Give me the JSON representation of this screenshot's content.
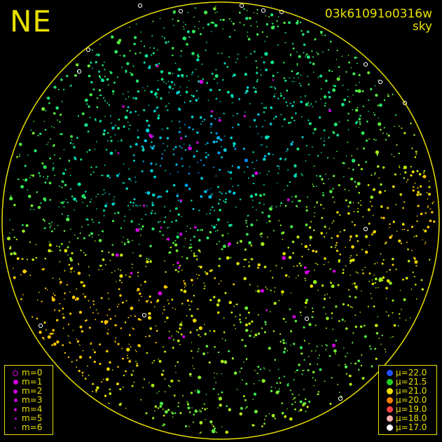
{
  "header": {
    "direction_label": "NE",
    "frame_id": "03k61091o0316w",
    "frame_type": "sky"
  },
  "colors": {
    "frame_line": "#e8e000",
    "star_magenta": "#d000e0",
    "background": "#000000"
  },
  "magnitude_legend": {
    "items": [
      {
        "label": "m=0",
        "style": "ring"
      },
      {
        "label": "m=1",
        "style": "dot"
      },
      {
        "label": "m=2",
        "style": "dot"
      },
      {
        "label": "m=3",
        "style": "dot"
      },
      {
        "label": "m=4",
        "style": "dot"
      },
      {
        "label": "m=5",
        "style": "dot"
      },
      {
        "label": "m=6",
        "style": "dot"
      }
    ]
  },
  "brightness_legend": {
    "items": [
      {
        "label": "μ=22.0",
        "color": "#2050ff"
      },
      {
        "label": "μ=21.5",
        "color": "#20d020"
      },
      {
        "label": "μ=21.0",
        "color": "#f0e000"
      },
      {
        "label": "μ=20.0",
        "color": "#ff8000"
      },
      {
        "label": "μ=19.0",
        "color": "#ff4040"
      },
      {
        "label": "μ=18.0",
        "color": "#ffb0b0"
      },
      {
        "label": "μ=17.0",
        "color": "#ffffff"
      }
    ]
  }
}
